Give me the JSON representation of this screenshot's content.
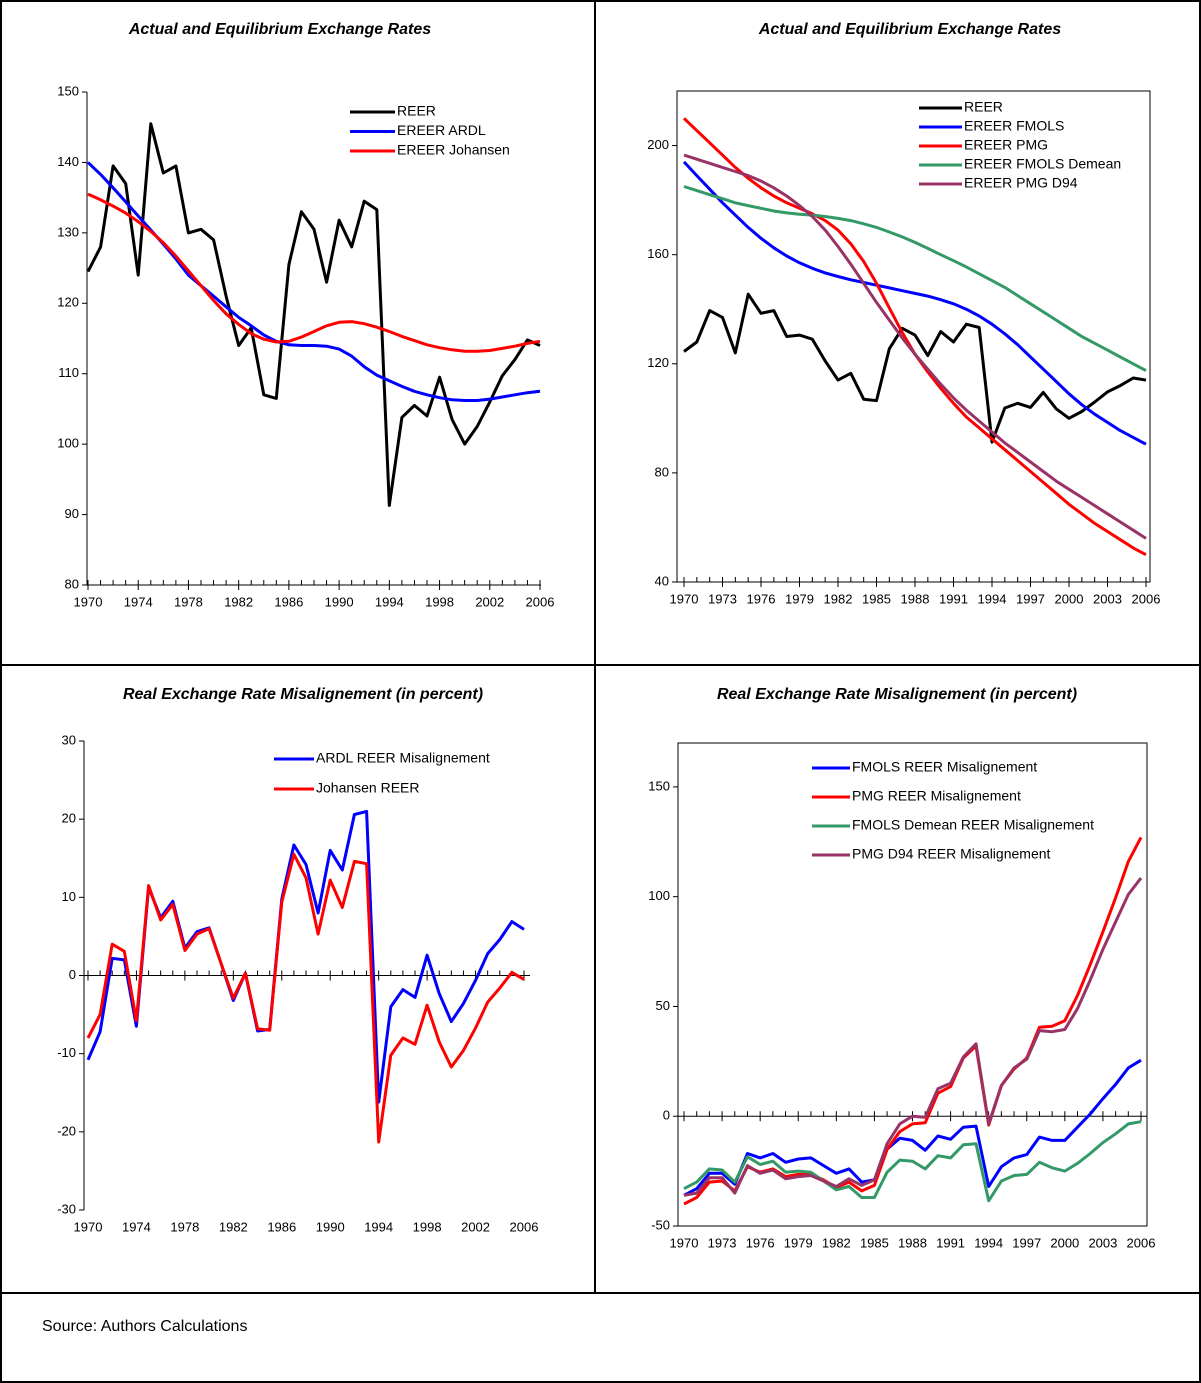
{
  "chart_data": [
    {
      "type": "line",
      "title": "Actual and Equilibrium Exchange Rates",
      "x": [
        1970,
        1971,
        1972,
        1973,
        1974,
        1975,
        1976,
        1977,
        1978,
        1979,
        1980,
        1981,
        1982,
        1983,
        1984,
        1985,
        1986,
        1987,
        1988,
        1989,
        1990,
        1991,
        1992,
        1993,
        1994,
        1995,
        1996,
        1997,
        1998,
        1999,
        2000,
        2001,
        2002,
        2003,
        2004,
        2005,
        2006
      ],
      "xlim": [
        1970,
        2006
      ],
      "xticks": [
        1970,
        1974,
        1978,
        1982,
        1986,
        1990,
        1994,
        1998,
        2002,
        2006
      ],
      "ylim": [
        80,
        150
      ],
      "yticks": [
        80,
        90,
        100,
        110,
        120,
        130,
        140,
        150
      ],
      "series": [
        {
          "name": "REER",
          "color": "#000000",
          "values": [
            124.5,
            128,
            139.5,
            137,
            124,
            145.5,
            138.5,
            139.5,
            130,
            130.5,
            129,
            121,
            114,
            116.5,
            107,
            106.5,
            125.5,
            133,
            130.5,
            123,
            131.8,
            128,
            134.5,
            133.3,
            91.3,
            103.8,
            105.5,
            104,
            109.5,
            103.5,
            100,
            102.5,
            106,
            109.7,
            112,
            114.8,
            114
          ]
        },
        {
          "name": "EREER ARDL",
          "color": "#0000ff",
          "values": [
            140,
            138.3,
            136.4,
            134.4,
            132.4,
            130.4,
            128.4,
            126.3,
            124,
            122.5,
            121,
            119.5,
            118,
            116.8,
            115.5,
            114.6,
            114.1,
            114,
            114,
            113.9,
            113.5,
            112.5,
            111,
            109.8,
            109,
            108.2,
            107.5,
            107,
            106.6,
            106.3,
            106.2,
            106.2,
            106.4,
            106.7,
            107,
            107.3,
            107.5
          ]
        },
        {
          "name": "EREER Johansen",
          "color": "#ff0000",
          "values": [
            135.5,
            134.7,
            133.8,
            132.8,
            131.6,
            130.2,
            128.6,
            126.7,
            124.6,
            122.5,
            120.4,
            118.5,
            117,
            115.7,
            114.9,
            114.5,
            114.6,
            115.2,
            116,
            116.8,
            117.3,
            117.4,
            117.1,
            116.6,
            116,
            115.3,
            114.7,
            114.1,
            113.7,
            113.4,
            113.2,
            113.2,
            113.3,
            113.6,
            113.9,
            114.3,
            114.6
          ]
        }
      ]
    },
    {
      "type": "line",
      "title": "Actual and Equilibrium Exchange Rates",
      "x": [
        1970,
        1971,
        1972,
        1973,
        1974,
        1975,
        1976,
        1977,
        1978,
        1979,
        1980,
        1981,
        1982,
        1983,
        1984,
        1985,
        1986,
        1987,
        1988,
        1989,
        1990,
        1991,
        1992,
        1993,
        1994,
        1995,
        1996,
        1997,
        1998,
        1999,
        2000,
        2001,
        2002,
        2003,
        2004,
        2005,
        2006
      ],
      "xlim": [
        1970,
        2006
      ],
      "xticks": [
        1970,
        1973,
        1976,
        1979,
        1982,
        1985,
        1988,
        1991,
        1994,
        1997,
        2000,
        2003,
        2006
      ],
      "ylim": [
        40,
        220
      ],
      "yticks": [
        40,
        80,
        120,
        160,
        200
      ],
      "series": [
        {
          "name": "REER",
          "color": "#000000",
          "values": [
            124.5,
            128,
            139.5,
            137,
            124,
            145.5,
            138.5,
            139.5,
            130,
            130.5,
            129,
            121,
            114,
            116.5,
            107,
            106.5,
            125.5,
            133,
            130.5,
            123,
            131.8,
            128,
            134.5,
            133.3,
            91.3,
            103.8,
            105.5,
            104,
            109.5,
            103.5,
            100,
            102.5,
            106,
            109.7,
            112,
            114.8,
            114
          ]
        },
        {
          "name": "EREER FMOLS",
          "color": "#0000ff",
          "values": [
            194,
            189,
            184,
            179,
            174.5,
            170,
            166,
            162.5,
            159.5,
            157,
            155,
            153.3,
            152,
            150.8,
            149.8,
            148.8,
            147.8,
            146.8,
            145.8,
            144.8,
            143.5,
            142,
            140,
            137.5,
            134.5,
            131,
            127,
            122.5,
            118,
            113.5,
            109,
            105,
            101.5,
            98.5,
            95.5,
            93,
            90.5
          ]
        },
        {
          "name": "EREER PMG",
          "color": "#ff0000",
          "values": [
            210,
            205.5,
            201,
            196.5,
            192,
            188,
            184.5,
            181.5,
            179,
            177,
            175,
            172.5,
            169,
            164,
            157.5,
            149.5,
            140.5,
            131.5,
            123.5,
            117,
            111,
            105.5,
            100.5,
            96.5,
            92.5,
            88.5,
            84.5,
            80.5,
            76.5,
            72.5,
            68.5,
            65,
            61.5,
            58.5,
            55.5,
            52.5,
            50
          ]
        },
        {
          "name": "EREER FMOLS Demean",
          "color": "#339966",
          "values": [
            185,
            183.5,
            182,
            180.5,
            179,
            178,
            177,
            176,
            175.3,
            174.8,
            174.5,
            174,
            173.3,
            172.5,
            171.3,
            170,
            168.3,
            166.5,
            164.5,
            162.3,
            160,
            157.8,
            155.5,
            153,
            150.5,
            148,
            145,
            142,
            139,
            136,
            133,
            130,
            127.5,
            125,
            122.5,
            120,
            117.5
          ]
        },
        {
          "name": "EREER PMG D94",
          "color": "#993366",
          "values": [
            196.5,
            195,
            193.5,
            192,
            190.5,
            189,
            187,
            184.5,
            181.5,
            178,
            174,
            169,
            163,
            156.5,
            149.5,
            142.5,
            136,
            129.5,
            123.5,
            118,
            112.5,
            107.5,
            103,
            99,
            95,
            91,
            87.5,
            84,
            80.5,
            77,
            74,
            71,
            68,
            65,
            62,
            59,
            56
          ]
        }
      ]
    },
    {
      "type": "line",
      "title": "Real Exchange Rate Misalignement (in percent)",
      "x": [
        1970,
        1971,
        1972,
        1973,
        1974,
        1975,
        1976,
        1977,
        1978,
        1979,
        1980,
        1981,
        1982,
        1983,
        1984,
        1985,
        1986,
        1987,
        1988,
        1989,
        1990,
        1991,
        1992,
        1993,
        1994,
        1995,
        1996,
        1997,
        1998,
        1999,
        2000,
        2001,
        2002,
        2003,
        2004,
        2005,
        2006
      ],
      "xlim": [
        1970,
        2006
      ],
      "xticks": [
        1970,
        1974,
        1978,
        1982,
        1986,
        1990,
        1994,
        1998,
        2002,
        2006
      ],
      "ylim": [
        -30,
        30
      ],
      "yticks": [
        -30,
        -20,
        -10,
        0,
        10,
        20,
        30
      ],
      "series": [
        {
          "name": "ARDL REER Misalignement",
          "color": "#0000ff",
          "values": [
            -10.8,
            -7.2,
            2.2,
            2.0,
            -6.5,
            11.3,
            7.4,
            9.5,
            3.5,
            5.6,
            6.1,
            1.5,
            -3.2,
            0.3,
            -7.1,
            -6.9,
            9.8,
            16.7,
            14.2,
            8.0,
            16.0,
            13.5,
            20.6,
            21.0,
            -16.2,
            -4.0,
            -1.8,
            -2.8,
            2.6,
            -2.3,
            -5.9,
            -3.6,
            -0.6,
            2.8,
            4.6,
            6.9,
            5.9
          ]
        },
        {
          "name": "Johansen REER",
          "color": "#ff0000",
          "values": [
            -8.0,
            -5.0,
            4.0,
            3.1,
            -5.8,
            11.5,
            7.1,
            9.1,
            3.2,
            5.3,
            6.0,
            1.5,
            -2.9,
            0.3,
            -6.8,
            -7.0,
            9.4,
            15.5,
            12.5,
            5.3,
            12.2,
            8.7,
            14.6,
            14.3,
            -21.3,
            -10.2,
            -8.0,
            -8.8,
            -3.8,
            -8.5,
            -11.7,
            -9.6,
            -6.7,
            -3.4,
            -1.6,
            0.4,
            -0.5
          ]
        }
      ]
    },
    {
      "type": "line",
      "title": "Real Exchange Rate Misalignement (in percent)",
      "x": [
        1970,
        1971,
        1972,
        1973,
        1974,
        1975,
        1976,
        1977,
        1978,
        1979,
        1980,
        1981,
        1982,
        1983,
        1984,
        1985,
        1986,
        1987,
        1988,
        1989,
        1990,
        1991,
        1992,
        1993,
        1994,
        1995,
        1996,
        1997,
        1998,
        1999,
        2000,
        2001,
        2002,
        2003,
        2004,
        2005,
        2006
      ],
      "xlim": [
        1970,
        2006
      ],
      "xticks": [
        1970,
        1973,
        1976,
        1979,
        1982,
        1985,
        1988,
        1991,
        1994,
        1997,
        2000,
        2003,
        2006
      ],
      "ylim": [
        -50,
        170
      ],
      "yticks": [
        -50,
        0,
        50,
        100,
        150
      ],
      "series": [
        {
          "name": "FMOLS REER Misalignement",
          "color": "#0000ff",
          "values": [
            -36,
            -33,
            -26,
            -26,
            -31,
            -17,
            -19,
            -17,
            -21,
            -19.5,
            -19,
            -22.5,
            -26,
            -24,
            -30,
            -29,
            -15,
            -10,
            -11,
            -15.5,
            -9,
            -10.5,
            -5,
            -4.5,
            -32,
            -23,
            -19,
            -17.5,
            -9.5,
            -11,
            -11,
            -5,
            1,
            8,
            14.5,
            22,
            25.5
          ]
        },
        {
          "name": "PMG REER Misalignement",
          "color": "#ff0000",
          "values": [
            -40,
            -37,
            -30,
            -29.5,
            -34,
            -23,
            -25.5,
            -24,
            -27.5,
            -26.5,
            -26.5,
            -29,
            -32.5,
            -30,
            -34,
            -31.5,
            -15,
            -7,
            -3.5,
            -3,
            10.5,
            13.5,
            26.5,
            32,
            -4,
            14,
            21.5,
            26.5,
            40.5,
            41,
            43.5,
            55,
            69,
            84,
            99.5,
            116,
            127
          ]
        },
        {
          "name": "FMOLS Demean REER Misalignement",
          "color": "#339966",
          "values": [
            -33,
            -30,
            -24,
            -24.5,
            -30,
            -18.5,
            -22,
            -20.5,
            -25.5,
            -25,
            -25.5,
            -29.5,
            -33.5,
            -32,
            -37,
            -37,
            -25.5,
            -20,
            -20.5,
            -24,
            -18,
            -19,
            -13,
            -12.5,
            -38.5,
            -29.5,
            -27,
            -26.5,
            -21,
            -23.5,
            -25,
            -21.5,
            -17,
            -12,
            -8,
            -3.5,
            -2.5
          ]
        },
        {
          "name": "PMG D94 REER Misalignement",
          "color": "#993366",
          "values": [
            -36,
            -35,
            -28,
            -28,
            -35,
            -22.5,
            -26,
            -24.5,
            -28.5,
            -27.5,
            -27,
            -29.5,
            -32,
            -28.5,
            -31.5,
            -29,
            -12.5,
            -3.5,
            0,
            -0.5,
            12.5,
            15,
            27,
            33,
            -3.5,
            14,
            22,
            26,
            39,
            38.5,
            39.5,
            49,
            62,
            76,
            88.5,
            101,
            108.5
          ]
        }
      ]
    }
  ],
  "source": "Source: Authors Calculations"
}
